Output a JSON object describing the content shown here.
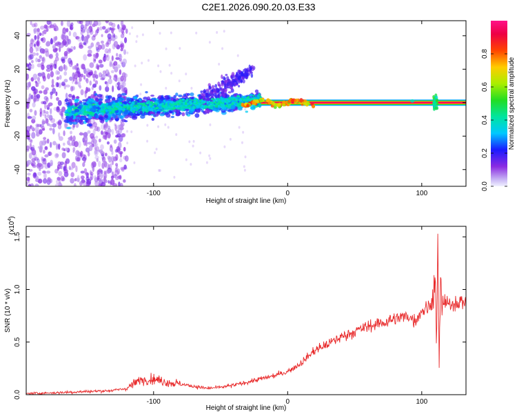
{
  "title": "C2E1.2026.090.20.03.E33",
  "chart_data": [
    {
      "type": "heatmap",
      "panel": "spectrogram",
      "xlabel": "Height of straight line (km)",
      "ylabel": "Frequency (Hz)",
      "xlim": [
        -195,
        133
      ],
      "ylim": [
        -50,
        49
      ],
      "x_ticks": [
        -100,
        0,
        100
      ],
      "y_ticks": [
        -40,
        -20,
        0,
        20,
        40
      ],
      "x_tick_labels": [
        "-100",
        "0",
        "100"
      ],
      "y_tick_labels": [
        "-40",
        "-20",
        "0",
        "20",
        "40"
      ],
      "colorbar": {
        "label": "Normalized spectral amplitude",
        "range": [
          0.0,
          1.0
        ],
        "ticks": [
          0.0,
          0.2,
          0.4,
          0.6,
          0.8
        ],
        "tick_labels": [
          "0.0",
          "0.2",
          "0.4",
          "0.6",
          "0.8"
        ]
      },
      "features": [
        {
          "name": "scattered noise",
          "x_range": [
            -195,
            -120
          ],
          "freq_range": [
            -50,
            49
          ],
          "amplitude": 0.05
        },
        {
          "name": "diffuse signal band",
          "x_range": [
            -165,
            -20
          ],
          "freq_range": [
            -15,
            25
          ],
          "amplitude": 0.2
        },
        {
          "name": "flaring spray",
          "x_range": [
            -60,
            -30
          ],
          "freq_range": [
            0,
            25
          ],
          "amplitude": 0.15
        },
        {
          "name": "stable tone",
          "x_range": [
            -20,
            133
          ],
          "freq_center": 0,
          "amplitude": 0.95
        },
        {
          "name": "disturbance",
          "x_center": 112,
          "freq_range": [
            -5,
            10
          ],
          "amplitude": 0.5
        }
      ]
    },
    {
      "type": "line",
      "panel": "snr",
      "xlabel": "Height of straight line (km)",
      "ylabel": "SNR (10 * v/v)",
      "y_scale_note": "(x10",
      "y_scale_exp": "4",
      "xlim": [
        -195,
        133
      ],
      "ylim": [
        0,
        1.6
      ],
      "x_ticks": [
        -100,
        0,
        100
      ],
      "y_ticks": [
        0.0,
        0.5,
        1.0,
        1.5
      ],
      "x_tick_labels": [
        "-100",
        "0",
        "100"
      ],
      "y_tick_labels": [
        "0.0",
        "0.5",
        "1.0",
        "1.5"
      ],
      "color": "#e8292a",
      "series": [
        {
          "name": "SNR",
          "x": [
            -195,
            -170,
            -150,
            -130,
            -120,
            -110,
            -100,
            -90,
            -80,
            -70,
            -60,
            -50,
            -40,
            -30,
            -20,
            -10,
            0,
            10,
            20,
            30,
            40,
            50,
            60,
            70,
            80,
            90,
            95,
            100,
            105,
            108,
            110,
            111,
            112,
            113,
            114,
            115,
            117,
            120,
            125,
            133
          ],
          "y": [
            0.01,
            0.02,
            0.03,
            0.04,
            0.06,
            0.14,
            0.15,
            0.12,
            0.1,
            0.08,
            0.06,
            0.07,
            0.09,
            0.12,
            0.15,
            0.18,
            0.22,
            0.3,
            0.42,
            0.48,
            0.55,
            0.6,
            0.65,
            0.68,
            0.72,
            0.75,
            0.7,
            0.8,
            0.83,
            0.9,
            1.1,
            0.3,
            1.55,
            0.1,
            1.25,
            0.85,
            0.88,
            0.85,
            0.88,
            0.88
          ]
        }
      ]
    }
  ]
}
